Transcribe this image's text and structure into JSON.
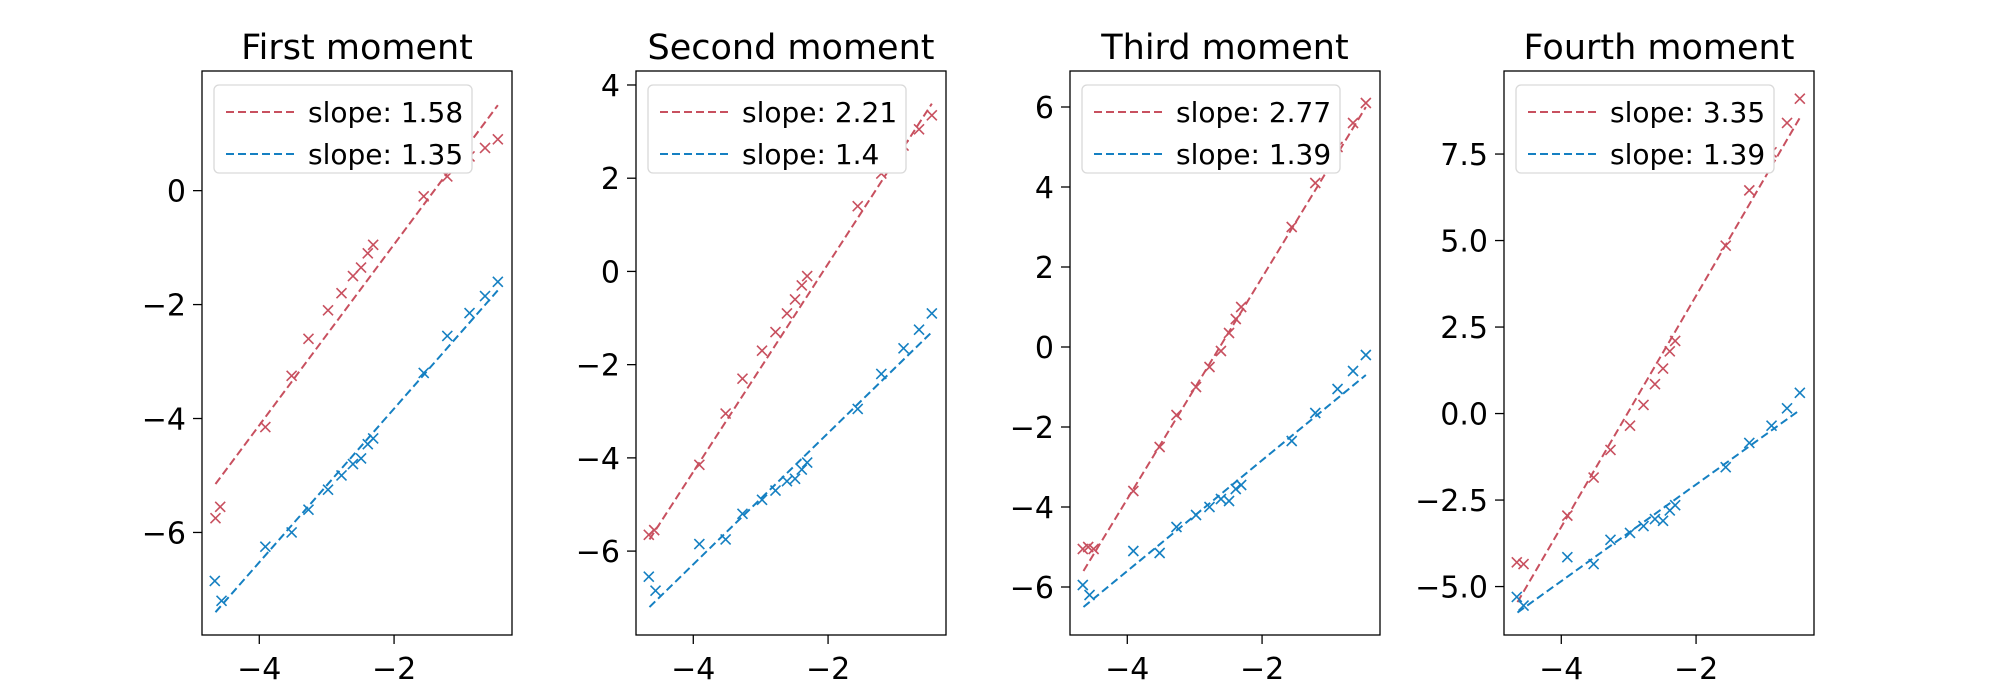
{
  "colors": {
    "red": "#c8505f",
    "blue": "#1580c2"
  },
  "chart_data": [
    {
      "type": "scatter",
      "title": "First moment",
      "xlabel": "",
      "ylabel": "",
      "xlim": [
        -4.85,
        -0.25
      ],
      "ylim": [
        -7.8,
        2.1
      ],
      "xticks": [
        -4,
        -2
      ],
      "xtick_labels": [
        "−4",
        "−2"
      ],
      "yticks": [
        -6,
        -4,
        -2,
        0
      ],
      "ytick_labels": [
        "−6",
        "−4",
        "−2",
        "0"
      ],
      "grid": false,
      "legend_position": "top-left",
      "series": [
        {
          "color": "red",
          "x": [
            -4.65,
            -4.58,
            -3.91,
            -3.52,
            -3.27,
            -2.98,
            -2.78,
            -2.61,
            -2.49,
            -2.39,
            -2.31,
            -1.56,
            -1.21,
            -0.88,
            -0.65,
            -0.46
          ],
          "y": [
            -5.75,
            -5.55,
            -4.15,
            -3.25,
            -2.6,
            -2.1,
            -1.8,
            -1.5,
            -1.35,
            -1.1,
            -0.95,
            -0.1,
            0.25,
            0.6,
            0.75,
            0.9
          ],
          "fit": {
            "label": "slope: 1.58",
            "x0": -4.65,
            "y0": -5.15,
            "x1": -0.46,
            "y1": 1.5
          }
        },
        {
          "color": "blue",
          "x": [
            -4.66,
            -4.56,
            -3.91,
            -3.52,
            -3.27,
            -2.98,
            -2.78,
            -2.61,
            -2.49,
            -2.39,
            -2.31,
            -1.56,
            -1.21,
            -0.88,
            -0.65,
            -0.46
          ],
          "y": [
            -6.85,
            -7.2,
            -6.25,
            -6.0,
            -5.6,
            -5.25,
            -5.0,
            -4.8,
            -4.7,
            -4.45,
            -4.35,
            -3.2,
            -2.55,
            -2.15,
            -1.85,
            -1.6
          ],
          "fit": {
            "label": "slope: 1.35",
            "x0": -4.65,
            "y0": -7.4,
            "x1": -0.46,
            "y1": -1.75
          }
        }
      ]
    },
    {
      "type": "scatter",
      "title": "Second moment",
      "xlabel": "",
      "ylabel": "",
      "xlim": [
        -4.85,
        -0.25
      ],
      "ylim": [
        -7.8,
        4.3
      ],
      "xticks": [
        -4,
        -2
      ],
      "xtick_labels": [
        "−4",
        "−2"
      ],
      "yticks": [
        -6,
        -4,
        -2,
        0,
        2,
        4
      ],
      "ytick_labels": [
        "−6",
        "−4",
        "−2",
        "0",
        "2",
        "4"
      ],
      "grid": false,
      "legend_position": "top-left",
      "series": [
        {
          "color": "red",
          "x": [
            -4.66,
            -4.58,
            -3.91,
            -3.52,
            -3.27,
            -2.98,
            -2.78,
            -2.61,
            -2.49,
            -2.39,
            -2.31,
            -1.56,
            -1.21,
            -0.88,
            -0.65,
            -0.46
          ],
          "y": [
            -5.65,
            -5.55,
            -4.15,
            -3.05,
            -2.3,
            -1.7,
            -1.3,
            -0.9,
            -0.6,
            -0.3,
            -0.1,
            1.4,
            2.1,
            2.7,
            3.05,
            3.35
          ],
          "fit": {
            "label": "slope: 2.21",
            "x0": -4.65,
            "y0": -5.75,
            "x1": -0.46,
            "y1": 3.6
          }
        },
        {
          "color": "blue",
          "x": [
            -4.66,
            -4.56,
            -3.91,
            -3.52,
            -3.27,
            -2.98,
            -2.78,
            -2.61,
            -2.49,
            -2.39,
            -2.31,
            -1.56,
            -1.21,
            -0.88,
            -0.65,
            -0.46
          ],
          "y": [
            -6.55,
            -6.85,
            -5.85,
            -5.75,
            -5.2,
            -4.9,
            -4.7,
            -4.5,
            -4.45,
            -4.25,
            -4.1,
            -2.95,
            -2.2,
            -1.65,
            -1.25,
            -0.9
          ],
          "fit": {
            "label": "slope: 1.4",
            "x0": -4.65,
            "y0": -7.2,
            "x1": -0.46,
            "y1": -1.3
          }
        }
      ]
    },
    {
      "type": "scatter",
      "title": "Third moment",
      "xlabel": "",
      "ylabel": "",
      "xlim": [
        -4.85,
        -0.25
      ],
      "ylim": [
        -7.2,
        6.9
      ],
      "xticks": [
        -4,
        -2
      ],
      "xtick_labels": [
        "−4",
        "−2"
      ],
      "yticks": [
        -6,
        -4,
        -2,
        0,
        2,
        4,
        6
      ],
      "ytick_labels": [
        "−6",
        "−4",
        "−2",
        "0",
        "2",
        "4",
        "6"
      ],
      "grid": false,
      "legend_position": "top-left",
      "series": [
        {
          "color": "red",
          "x": [
            -4.66,
            -4.58,
            -4.5,
            -3.91,
            -3.52,
            -3.27,
            -2.98,
            -2.78,
            -2.61,
            -2.49,
            -2.39,
            -2.31,
            -1.56,
            -1.21,
            -0.88,
            -0.65,
            -0.46
          ],
          "y": [
            -5.05,
            -5.0,
            -5.05,
            -3.6,
            -2.5,
            -1.7,
            -1.0,
            -0.5,
            -0.1,
            0.35,
            0.7,
            1.0,
            3.0,
            4.1,
            5.0,
            5.6,
            6.1
          ],
          "fit": {
            "label": "slope: 2.77",
            "x0": -4.65,
            "y0": -5.6,
            "x1": -0.46,
            "y1": 6.0
          }
        },
        {
          "color": "blue",
          "x": [
            -4.66,
            -4.56,
            -3.91,
            -3.52,
            -3.27,
            -2.98,
            -2.78,
            -2.61,
            -2.49,
            -2.39,
            -2.31,
            -1.56,
            -1.21,
            -0.88,
            -0.65,
            -0.46
          ],
          "y": [
            -5.95,
            -6.2,
            -5.1,
            -5.15,
            -4.5,
            -4.2,
            -4.0,
            -3.8,
            -3.85,
            -3.55,
            -3.45,
            -2.35,
            -1.65,
            -1.05,
            -0.6,
            -0.2
          ],
          "fit": {
            "label": "slope: 1.39",
            "x0": -4.65,
            "y0": -6.5,
            "x1": -0.46,
            "y1": -0.7
          }
        }
      ]
    },
    {
      "type": "scatter",
      "title": "Fourth moment",
      "xlabel": "",
      "ylabel": "",
      "xlim": [
        -4.85,
        -0.25
      ],
      "ylim": [
        -6.4,
        9.9
      ],
      "xticks": [
        -4,
        -2
      ],
      "xtick_labels": [
        "−4",
        "−2"
      ],
      "yticks": [
        -5,
        -2.5,
        0,
        2.5,
        5,
        7.5
      ],
      "ytick_labels": [
        "−5.0",
        "−2.5",
        "0.0",
        "2.5",
        "5.0",
        "7.5"
      ],
      "grid": false,
      "legend_position": "top-left",
      "series": [
        {
          "color": "red",
          "x": [
            -4.66,
            -4.56,
            -3.91,
            -3.52,
            -3.27,
            -2.98,
            -2.78,
            -2.61,
            -2.49,
            -2.39,
            -2.31,
            -1.56,
            -1.21,
            -0.88,
            -0.65,
            -0.46
          ],
          "y": [
            -4.3,
            -4.35,
            -2.95,
            -1.85,
            -1.05,
            -0.35,
            0.25,
            0.85,
            1.3,
            1.8,
            2.1,
            4.85,
            6.45,
            7.55,
            8.4,
            9.1
          ],
          "fit": {
            "label": "slope: 3.35",
            "x0": -4.65,
            "y0": -5.45,
            "x1": -0.46,
            "y1": 8.55
          }
        },
        {
          "color": "blue",
          "x": [
            -4.66,
            -4.56,
            -3.91,
            -3.52,
            -3.27,
            -2.98,
            -2.78,
            -2.61,
            -2.49,
            -2.39,
            -2.31,
            -1.56,
            -1.21,
            -0.88,
            -0.65,
            -0.46
          ],
          "y": [
            -5.3,
            -5.55,
            -4.15,
            -4.35,
            -3.65,
            -3.45,
            -3.25,
            -3.05,
            -3.1,
            -2.8,
            -2.65,
            -1.55,
            -0.85,
            -0.35,
            0.15,
            0.6
          ],
          "fit": {
            "label": "slope: 1.39",
            "x0": -4.65,
            "y0": -5.75,
            "x1": -0.46,
            "y1": 0.1
          }
        }
      ]
    }
  ]
}
